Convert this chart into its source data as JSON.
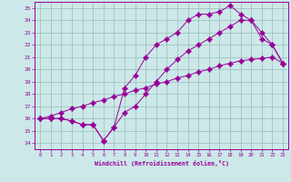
{
  "xlabel": "Windchill (Refroidissement éolien,°C)",
  "background_color": "#cce8e8",
  "line_color": "#990099",
  "grid_color": "#99bbbb",
  "xlim": [
    -0.5,
    23.5
  ],
  "ylim": [
    13.5,
    25.5
  ],
  "xticks": [
    0,
    1,
    2,
    3,
    4,
    5,
    6,
    7,
    8,
    9,
    10,
    11,
    12,
    13,
    14,
    15,
    16,
    17,
    18,
    19,
    20,
    21,
    22,
    23
  ],
  "yticks": [
    14,
    15,
    16,
    17,
    18,
    19,
    20,
    21,
    22,
    23,
    24,
    25
  ],
  "line1_x": [
    0,
    1,
    2,
    3,
    4,
    5,
    6,
    7,
    8,
    9,
    10,
    11,
    12,
    13,
    14,
    15,
    16,
    17,
    18,
    19,
    20,
    21,
    22,
    23
  ],
  "line1_y": [
    16.0,
    16.0,
    16.0,
    15.8,
    15.5,
    15.5,
    14.2,
    15.3,
    16.5,
    17.0,
    18.0,
    19.0,
    20.0,
    20.8,
    21.5,
    22.0,
    22.5,
    23.0,
    23.5,
    24.0,
    24.0,
    22.5,
    22.0,
    20.5
  ],
  "line2_x": [
    0,
    1,
    2,
    3,
    4,
    5,
    6,
    7,
    8,
    9,
    10,
    11,
    12,
    13,
    14,
    15,
    16,
    17,
    18,
    19,
    20,
    21,
    22,
    23
  ],
  "line2_y": [
    16.0,
    16.0,
    16.0,
    15.8,
    15.5,
    15.5,
    14.2,
    15.3,
    18.5,
    19.5,
    21.0,
    22.0,
    22.5,
    23.0,
    24.0,
    24.5,
    24.5,
    24.7,
    25.2,
    24.5,
    24.0,
    23.0,
    22.0,
    20.5
  ],
  "line3_x": [
    0,
    1,
    2,
    3,
    4,
    5,
    6,
    7,
    8,
    9,
    10,
    11,
    12,
    13,
    14,
    15,
    16,
    17,
    18,
    19,
    20,
    21,
    22,
    23
  ],
  "line3_y": [
    16.0,
    16.2,
    16.5,
    16.8,
    17.0,
    17.3,
    17.5,
    17.8,
    18.0,
    18.3,
    18.5,
    18.8,
    19.0,
    19.3,
    19.5,
    19.8,
    20.0,
    20.3,
    20.5,
    20.7,
    20.8,
    20.9,
    21.0,
    20.5
  ]
}
